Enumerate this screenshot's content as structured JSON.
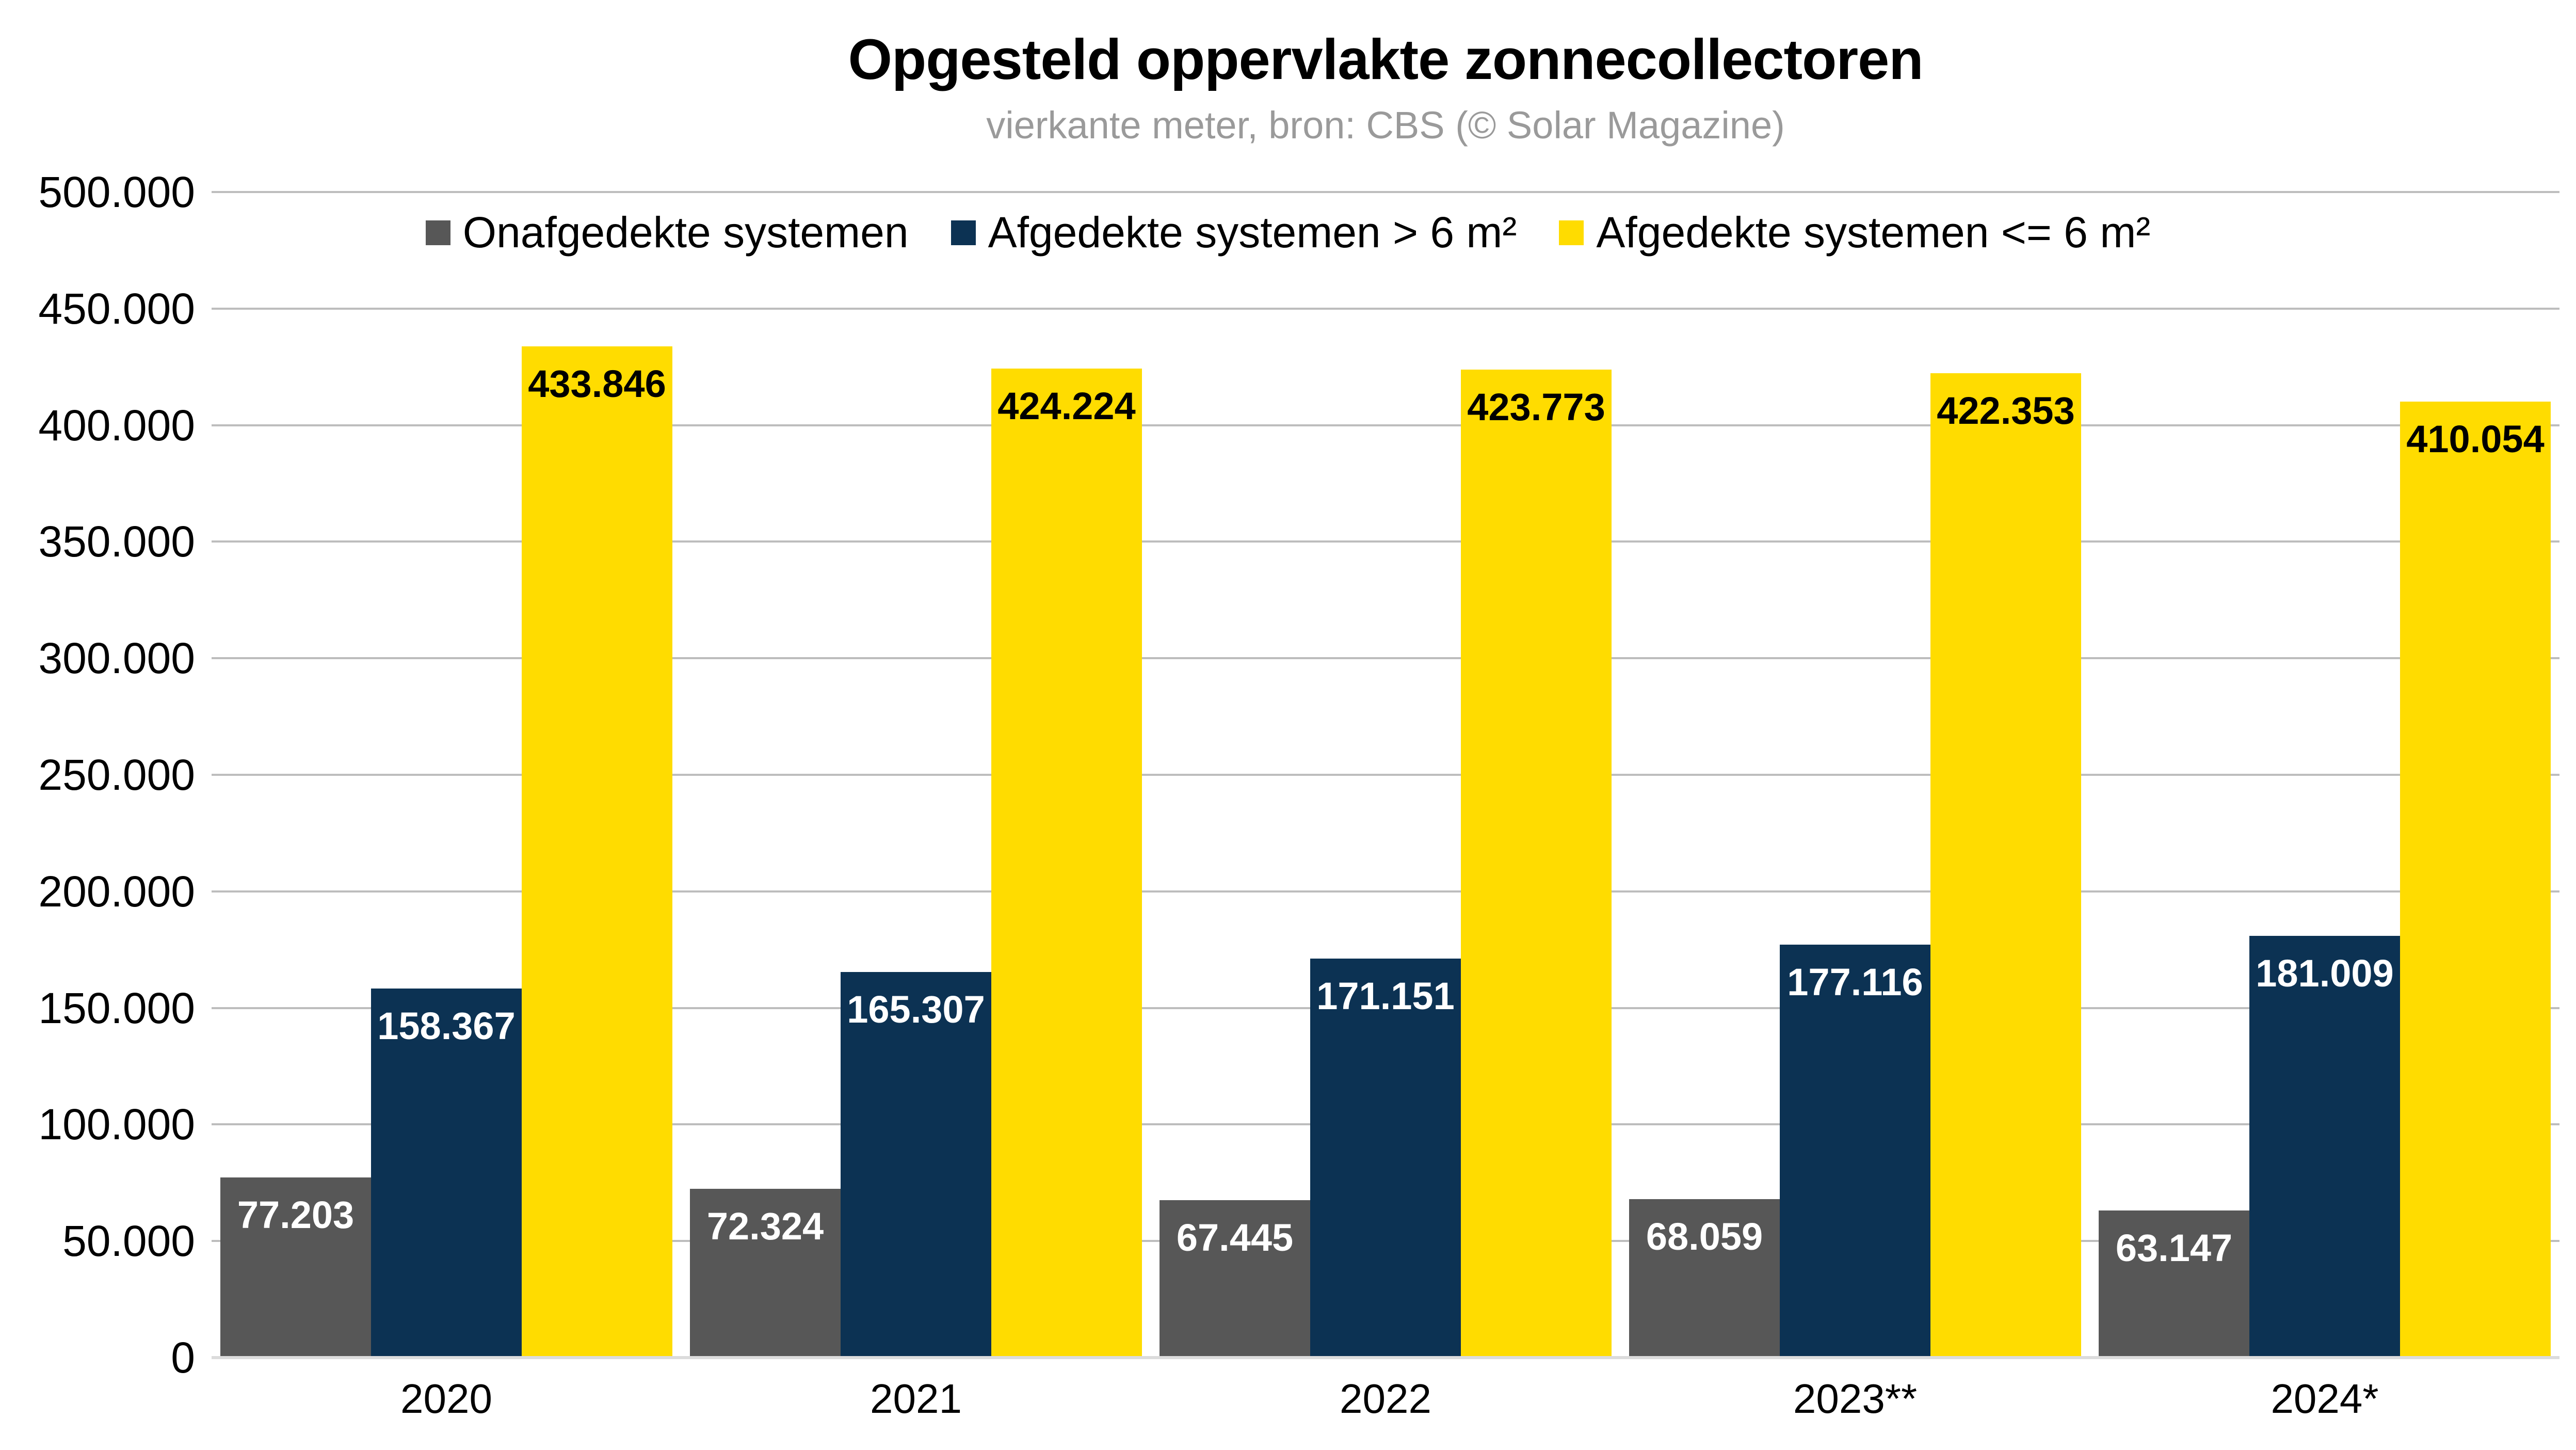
{
  "title": "Opgesteld oppervlakte zonnecollectoren",
  "subtitle": "vierkante meter, bron: CBS (© Solar Magazine)",
  "chart_data": {
    "type": "bar",
    "title": "Opgesteld oppervlakte zonnecollectoren",
    "subtitle": "vierkante meter, bron: CBS (© Solar Magazine)",
    "xlabel": "",
    "ylabel": "",
    "categories": [
      "2020",
      "2021",
      "2022",
      "2023**",
      "2024*"
    ],
    "series": [
      {
        "name": "Onafgedekte systemen",
        "color": "#575757",
        "label_color": "#ffffff",
        "values": [
          77203,
          72324,
          67445,
          68059,
          63147
        ]
      },
      {
        "name": "Afgedekte systemen > 6 m²",
        "color": "#0c3253",
        "label_color": "#ffffff",
        "values": [
          158367,
          165307,
          171151,
          177116,
          181009
        ]
      },
      {
        "name": "Afgedekte systemen <= 6 m²",
        "color": "#ffdc00",
        "label_color": "#000000",
        "values": [
          433846,
          424224,
          423773,
          422353,
          410054
        ]
      }
    ],
    "ylim": [
      0,
      500000
    ],
    "ytick_step": 50000,
    "y_ticks": [
      "500.000",
      "450.000",
      "400.000",
      "350.000",
      "300.000",
      "250.000",
      "200.000",
      "150.000",
      "100.000",
      "50.000",
      "0"
    ],
    "thousands_separator": ".",
    "grid": true,
    "legend_position": "top"
  },
  "style_colors": {
    "background": "#ffffff",
    "title": "#000000",
    "subtitle": "#9a9a9a",
    "axis_text": "#000000",
    "gridline": "#bdbdbd",
    "baseline": "#dcdcdc"
  }
}
